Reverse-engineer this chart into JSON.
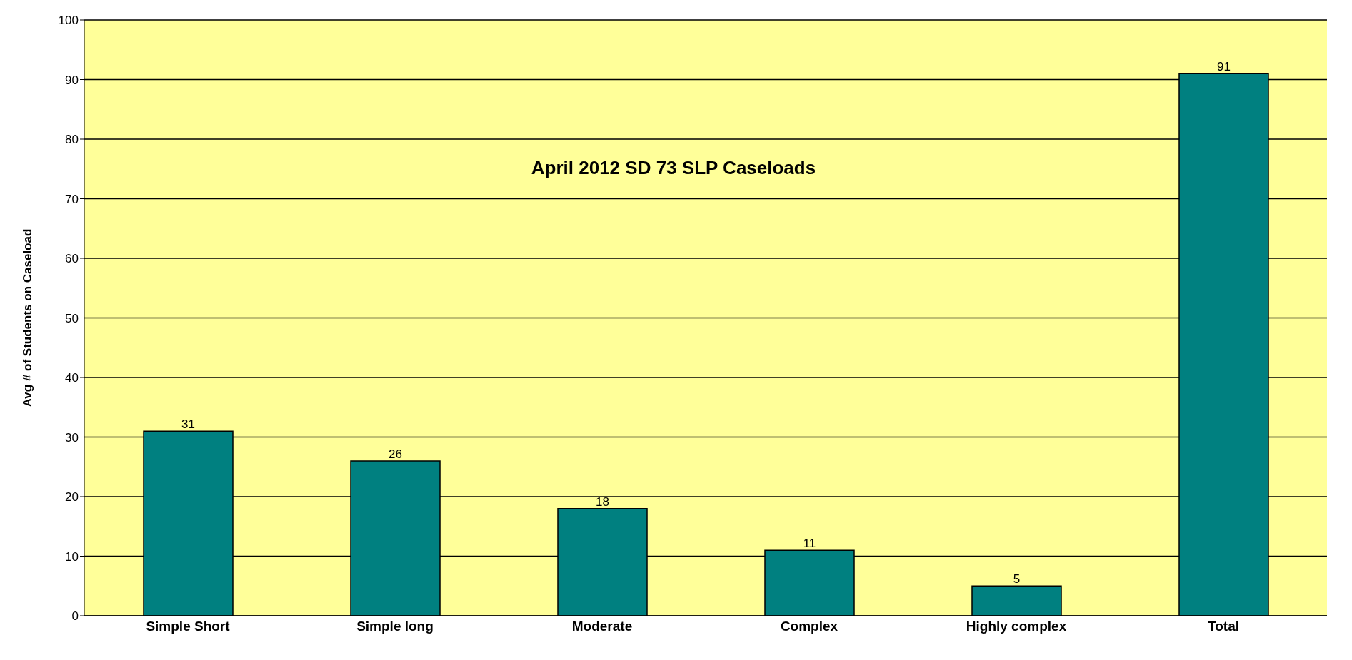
{
  "chart_data": {
    "type": "bar",
    "title": "April 2012 SD 73 SLP Caseloads",
    "ylabel": "Avg # of Students on Caseload",
    "categories": [
      "Simple Short",
      "Simple long",
      "Moderate",
      "Complex",
      "Highly complex",
      "Total"
    ],
    "values": [
      31,
      26,
      18,
      11,
      5,
      91
    ],
    "color": "#008080",
    "ylim": [
      0,
      100
    ],
    "yticks": [
      0,
      10,
      20,
      30,
      40,
      50,
      60,
      70,
      80,
      90,
      100
    ],
    "grid": "y",
    "data_labels": true,
    "legend": false
  }
}
